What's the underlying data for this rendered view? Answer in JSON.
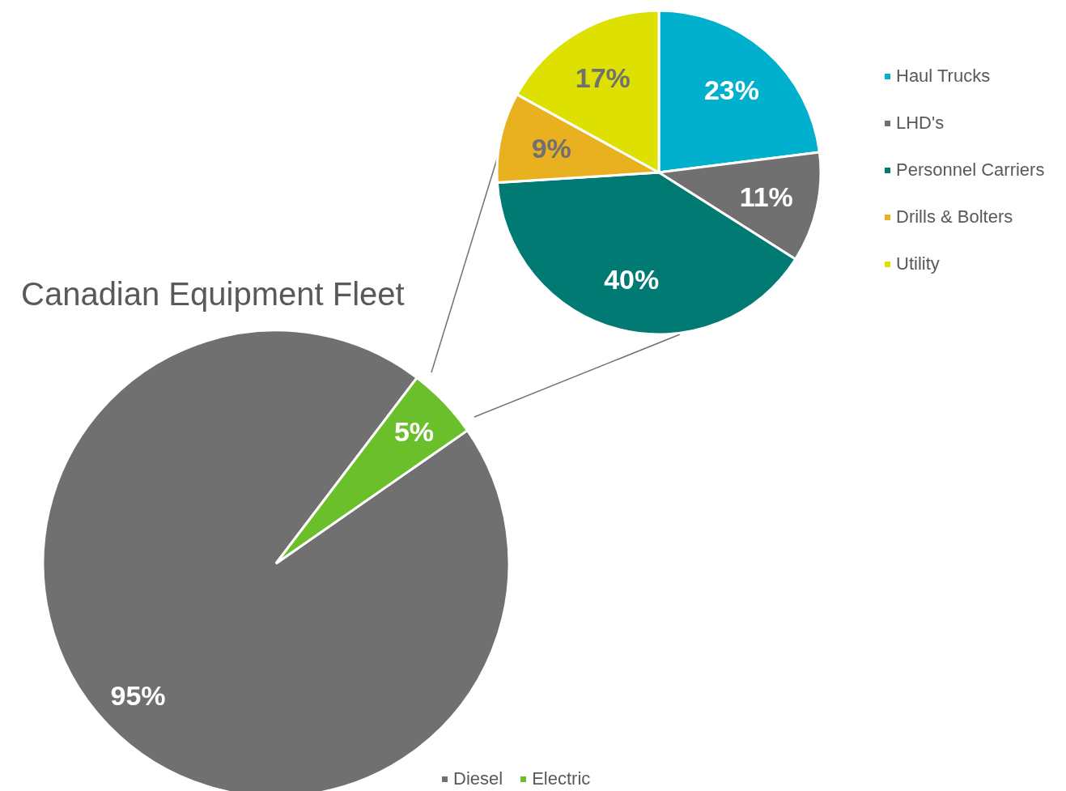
{
  "chart_data": [
    {
      "type": "pie",
      "title": "Canadian Equipment Fleet",
      "categories": [
        "Diesel",
        "Electric"
      ],
      "values": [
        95,
        5
      ],
      "colors": [
        "#6f706f",
        "#6abf2a"
      ],
      "value_labels": [
        "95%",
        "5%"
      ],
      "legend": "bottom"
    },
    {
      "type": "pie",
      "categories": [
        "Haul Trucks",
        "LHD's",
        "Personnel Carriers",
        "Drills & Bolters",
        "Utility"
      ],
      "values": [
        23,
        11,
        40,
        9,
        17
      ],
      "colors": [
        "#00b0cc",
        "#6f706f",
        "#007a73",
        "#e9b020",
        "#dde000"
      ],
      "value_labels": [
        "23%",
        "11%",
        "40%",
        "9%",
        "17%"
      ],
      "legend": "right"
    }
  ]
}
